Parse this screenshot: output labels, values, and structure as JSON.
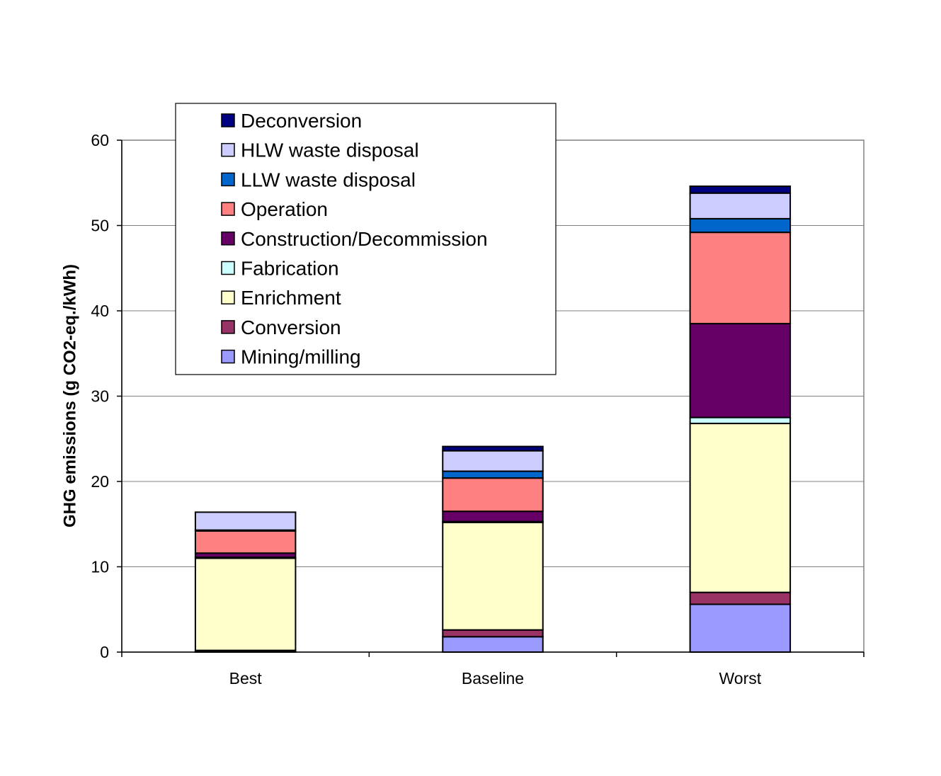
{
  "chart_data": {
    "type": "bar",
    "stacked": true,
    "title": "",
    "xlabel": "",
    "ylabel": "GHG emissions (g CO2-eq./kWh)",
    "ylim": [
      0,
      60
    ],
    "yticks": [
      0,
      10,
      20,
      30,
      40,
      50,
      60
    ],
    "grid": true,
    "legend_position": "top-left",
    "categories": [
      "Best",
      "Baseline",
      "Worst"
    ],
    "series": [
      {
        "name": "Mining/milling",
        "color": "#9999ff",
        "values": [
          0.1,
          1.8,
          5.6
        ]
      },
      {
        "name": "Conversion",
        "color": "#993366",
        "values": [
          0.1,
          0.8,
          1.4
        ]
      },
      {
        "name": "Enrichment",
        "color": "#ffffcc",
        "values": [
          10.8,
          12.6,
          19.8
        ]
      },
      {
        "name": "Fabrication",
        "color": "#ccffff",
        "values": [
          0.1,
          0.1,
          0.7
        ]
      },
      {
        "name": "Construction/Decommission",
        "color": "#660066",
        "values": [
          0.5,
          1.2,
          11.0
        ]
      },
      {
        "name": "Operation",
        "color": "#ff8080",
        "values": [
          2.6,
          3.9,
          10.7
        ]
      },
      {
        "name": "LLW waste disposal",
        "color": "#0066cc",
        "values": [
          0.1,
          0.8,
          1.6
        ]
      },
      {
        "name": "HLW waste disposal",
        "color": "#ccccff",
        "values": [
          2.1,
          2.4,
          3.0
        ]
      },
      {
        "name": "Deconversion",
        "color": "#000080",
        "values": [
          0.0,
          0.5,
          0.8
        ]
      }
    ]
  }
}
